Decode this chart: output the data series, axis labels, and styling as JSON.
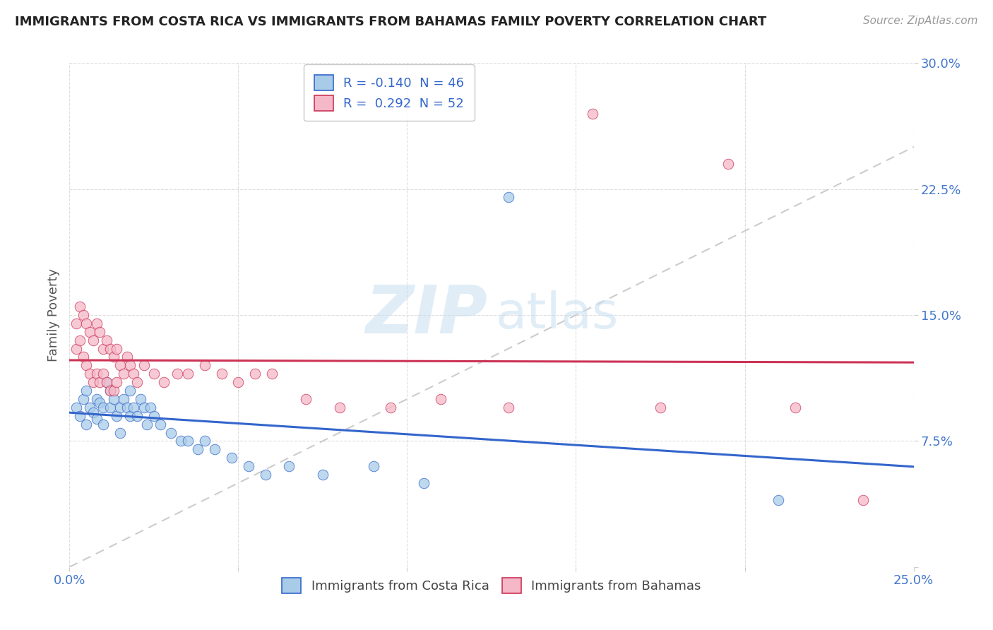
{
  "title": "IMMIGRANTS FROM COSTA RICA VS IMMIGRANTS FROM BAHAMAS FAMILY POVERTY CORRELATION CHART",
  "source": "Source: ZipAtlas.com",
  "ylabel": "Family Poverty",
  "legend_top_label_cr": "R = -0.140  N = 46",
  "legend_top_label_bah": "R =  0.292  N = 52",
  "legend_bot_labels": [
    "Immigrants from Costa Rica",
    "Immigrants from Bahamas"
  ],
  "r_costa_rica": -0.14,
  "n_costa_rica": 46,
  "r_bahamas": 0.292,
  "n_bahamas": 52,
  "xlim": [
    0.0,
    0.25
  ],
  "ylim": [
    0.0,
    0.3
  ],
  "xticks": [
    0.0,
    0.05,
    0.1,
    0.15,
    0.2,
    0.25
  ],
  "yticks": [
    0.0,
    0.075,
    0.15,
    0.225,
    0.3
  ],
  "color_costa_rica": "#a8cce8",
  "color_bahamas": "#f5b8c8",
  "trendline_costa_rica": "#3366cc",
  "trendline_bahamas": "#cc3355",
  "diagonal_color": "#cccccc",
  "watermark_zip_color": "#c8dff0",
  "watermark_atlas_color": "#c8dff0",
  "background_color": "#ffffff",
  "grid_color": "#dddddd",
  "costa_rica_x": [
    0.002,
    0.003,
    0.004,
    0.005,
    0.005,
    0.006,
    0.007,
    0.008,
    0.008,
    0.009,
    0.01,
    0.01,
    0.011,
    0.012,
    0.012,
    0.013,
    0.014,
    0.015,
    0.015,
    0.016,
    0.017,
    0.018,
    0.018,
    0.019,
    0.02,
    0.021,
    0.022,
    0.023,
    0.024,
    0.025,
    0.027,
    0.03,
    0.033,
    0.035,
    0.038,
    0.04,
    0.043,
    0.048,
    0.053,
    0.058,
    0.065,
    0.075,
    0.09,
    0.105,
    0.13,
    0.21
  ],
  "costa_rica_y": [
    0.095,
    0.09,
    0.1,
    0.105,
    0.085,
    0.095,
    0.092,
    0.1,
    0.088,
    0.098,
    0.095,
    0.085,
    0.11,
    0.095,
    0.105,
    0.1,
    0.09,
    0.095,
    0.08,
    0.1,
    0.095,
    0.105,
    0.09,
    0.095,
    0.09,
    0.1,
    0.095,
    0.085,
    0.095,
    0.09,
    0.085,
    0.08,
    0.075,
    0.075,
    0.07,
    0.075,
    0.07,
    0.065,
    0.06,
    0.055,
    0.06,
    0.055,
    0.06,
    0.05,
    0.22,
    0.04
  ],
  "bahamas_x": [
    0.002,
    0.002,
    0.003,
    0.003,
    0.004,
    0.004,
    0.005,
    0.005,
    0.006,
    0.006,
    0.007,
    0.007,
    0.008,
    0.008,
    0.009,
    0.009,
    0.01,
    0.01,
    0.011,
    0.011,
    0.012,
    0.012,
    0.013,
    0.013,
    0.014,
    0.014,
    0.015,
    0.016,
    0.017,
    0.018,
    0.019,
    0.02,
    0.022,
    0.025,
    0.028,
    0.032,
    0.035,
    0.04,
    0.045,
    0.05,
    0.055,
    0.06,
    0.07,
    0.08,
    0.095,
    0.11,
    0.13,
    0.155,
    0.175,
    0.195,
    0.215,
    0.235
  ],
  "bahamas_y": [
    0.145,
    0.13,
    0.155,
    0.135,
    0.15,
    0.125,
    0.145,
    0.12,
    0.14,
    0.115,
    0.135,
    0.11,
    0.145,
    0.115,
    0.14,
    0.11,
    0.13,
    0.115,
    0.135,
    0.11,
    0.13,
    0.105,
    0.125,
    0.105,
    0.13,
    0.11,
    0.12,
    0.115,
    0.125,
    0.12,
    0.115,
    0.11,
    0.12,
    0.115,
    0.11,
    0.115,
    0.115,
    0.12,
    0.115,
    0.11,
    0.115,
    0.115,
    0.1,
    0.095,
    0.095,
    0.1,
    0.095,
    0.27,
    0.095,
    0.24,
    0.095,
    0.04
  ]
}
